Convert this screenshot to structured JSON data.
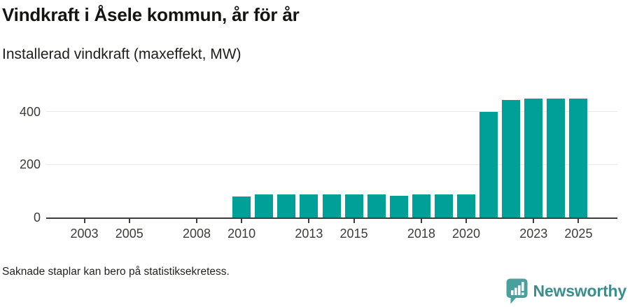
{
  "header": {
    "title": "Vindkraft i Åsele kommun, år för år",
    "subtitle": "Installerad vindkraft (maxeffekt, MW)"
  },
  "footer": {
    "note": "Saknade staplar kan bero på statistiksekretess.",
    "brand": "Newsworthy"
  },
  "colors": {
    "bar": "#00a099",
    "axis": "#3d3d3b",
    "gridline": "#e8e8e6",
    "tick_label": "#3c3c3a",
    "logo_bubble": "#4aa09c",
    "logo_text": "#3a8f8c"
  },
  "chart_data": {
    "type": "bar",
    "title": "Vindkraft i Åsele kommun, år för år",
    "subtitle": "Installerad vindkraft (maxeffekt, MW)",
    "xlabel": "",
    "ylabel": "",
    "unit": "MW",
    "grid": "horizontal",
    "legend": "none",
    "categories": [
      2002,
      2003,
      2004,
      2005,
      2006,
      2007,
      2008,
      2009,
      2010,
      2011,
      2012,
      2013,
      2014,
      2015,
      2016,
      2017,
      2018,
      2019,
      2020,
      2021,
      2022,
      2023,
      2024,
      2025
    ],
    "values": [
      null,
      null,
      null,
      null,
      null,
      null,
      null,
      null,
      78,
      86,
      86,
      86,
      86,
      86,
      86,
      82,
      88,
      88,
      88,
      398,
      443,
      450,
      450,
      450
    ],
    "missing_note": "Saknade staplar kan bero på statistiksekretess.",
    "ylim": [
      0,
      478
    ],
    "yticks": [
      0,
      200,
      400
    ],
    "xlim": [
      2001.3,
      2026.7
    ],
    "xticks": [
      2003,
      2005,
      2008,
      2010,
      2013,
      2015,
      2018,
      2020,
      2023,
      2025
    ]
  }
}
